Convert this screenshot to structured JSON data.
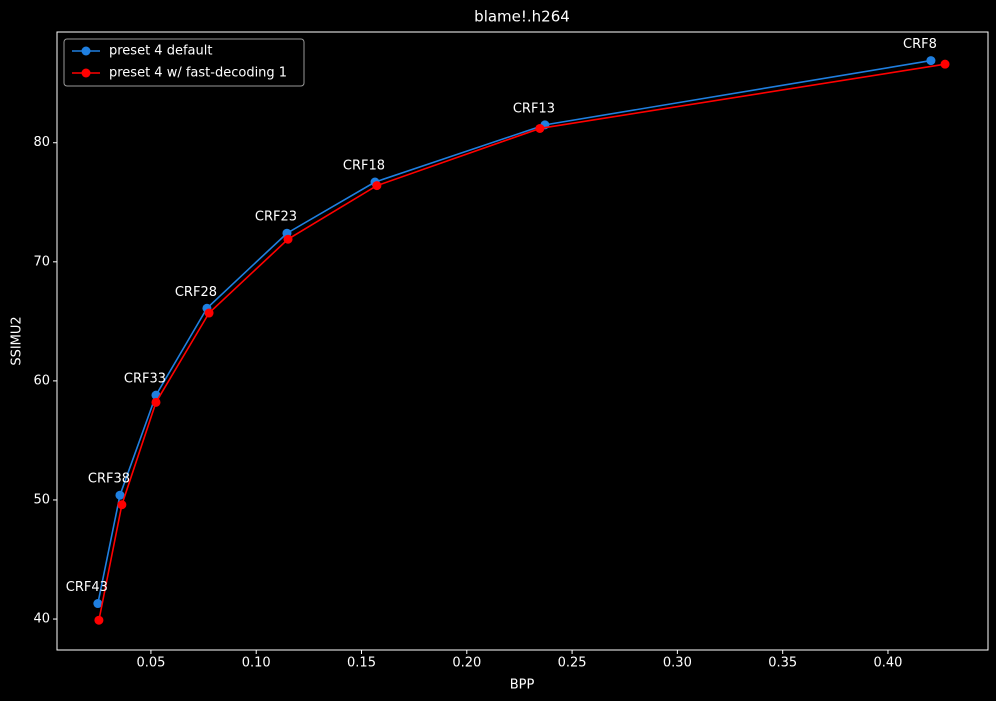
{
  "chart_data": {
    "type": "line",
    "title": "blame!.h264",
    "x_label": "BPP",
    "y_label": "SSIMU2",
    "series": [
      {
        "name": "preset 4 default",
        "color": "#1f7fe0",
        "x": [
          0.0248,
          0.0353,
          0.0524,
          0.0766,
          0.1146,
          0.1564,
          0.2371,
          0.4204
        ],
        "values": [
          41.3,
          50.4,
          58.8,
          66.1,
          72.4,
          76.7,
          81.5,
          86.9
        ]
      },
      {
        "name": "preset 4 w/ fast-decoding 1",
        "color": "#ff0000",
        "x": [
          0.0253,
          0.0362,
          0.0524,
          0.0776,
          0.1151,
          0.1573,
          0.2347,
          0.4271
        ],
        "values": [
          39.9,
          49.6,
          58.2,
          65.7,
          71.9,
          76.4,
          81.2,
          86.6
        ]
      }
    ],
    "annotations": [
      "CRF43",
      "CRF38",
      "CRF33",
      "CRF28",
      "CRF23",
      "CRF18",
      "CRF13",
      "CRF8"
    ],
    "xlim": [
      0.0054,
      0.4475
    ],
    "ylim": [
      37.4,
      89.3
    ],
    "xticks": [
      0.05,
      {
        "value": 0.1,
        "label": "0.10"
      },
      0.15,
      {
        "value": 0.2,
        "label": "0.20"
      },
      0.25,
      {
        "value": 0.3,
        "label": "0.30"
      },
      0.35,
      {
        "value": 0.4,
        "label": "0.40"
      }
    ],
    "yticks": [
      40,
      50,
      60,
      70,
      80
    ],
    "grid": false,
    "legend": "upper left"
  }
}
